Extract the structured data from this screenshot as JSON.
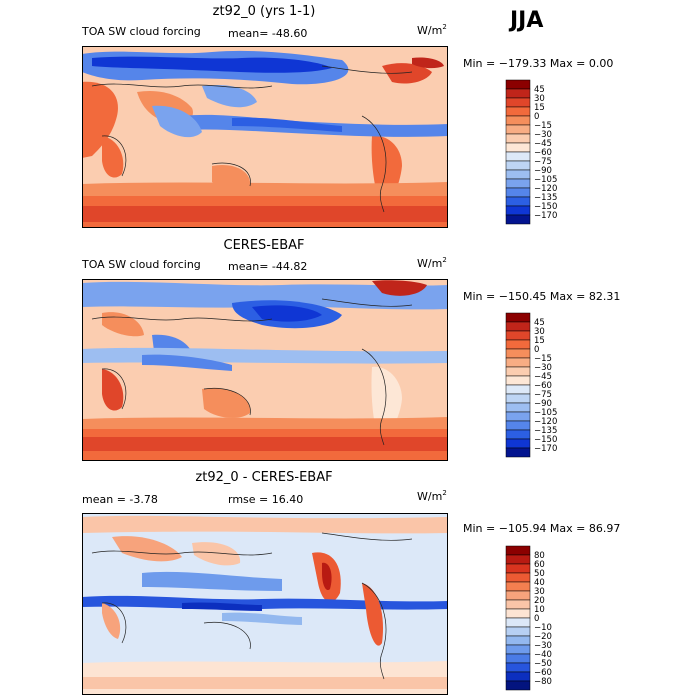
{
  "season": "JJA",
  "panels": [
    {
      "title": "zt92_0 (yrs 1-1)",
      "variable": "TOA SW cloud forcing",
      "stat_left": "",
      "stat_mid": "mean= -48.60",
      "units": "W/m",
      "units_sup": "2",
      "minmax": "Min = −179.33 Max =    0.00",
      "colorbar": {
        "levels": [
          "45",
          "30",
          "15",
          "0",
          "−15",
          "−30",
          "−45",
          "−60",
          "−75",
          "−90",
          "−105",
          "−120",
          "−135",
          "−150",
          "−170"
        ],
        "colors": [
          "#8b0000",
          "#c0251a",
          "#e0462a",
          "#f26a3c",
          "#f58e5c",
          "#f8ad84",
          "#fbcdb0",
          "#fde7d6",
          "#dde9f8",
          "#bed5f4",
          "#9dbef1",
          "#7aa3ee",
          "#5585ea",
          "#2c5fe3",
          "#0f36d4",
          "#03148f"
        ]
      }
    },
    {
      "title": "CERES-EBAF",
      "variable": "TOA SW cloud forcing",
      "stat_left": "",
      "stat_mid": "mean= -44.82",
      "units": "W/m",
      "units_sup": "2",
      "minmax": "Min = −150.45 Max =  82.31",
      "colorbar": {
        "levels": [
          "45",
          "30",
          "15",
          "0",
          "−15",
          "−30",
          "−45",
          "−60",
          "−75",
          "−90",
          "−105",
          "−120",
          "−135",
          "−150",
          "−170"
        ],
        "colors": [
          "#8b0000",
          "#c0251a",
          "#e0462a",
          "#f26a3c",
          "#f58e5c",
          "#f8ad84",
          "#fbcdb0",
          "#fde7d6",
          "#dde9f8",
          "#bed5f4",
          "#9dbef1",
          "#7aa3ee",
          "#5585ea",
          "#2c5fe3",
          "#0f36d4",
          "#03148f"
        ]
      }
    },
    {
      "title": "zt92_0 - CERES-EBAF",
      "variable": "",
      "stat_left": "mean =   -3.78",
      "stat_mid": "rmse =  16.40",
      "units": "W/m",
      "units_sup": "2",
      "minmax": "Min = −105.94 Max =  86.97",
      "colorbar": {
        "levels": [
          "80",
          "60",
          "50",
          "40",
          "30",
          "20",
          "10",
          "0",
          "−10",
          "−20",
          "−30",
          "−40",
          "−50",
          "−60",
          "−80"
        ],
        "colors": [
          "#8b0000",
          "#b81a12",
          "#d9341f",
          "#ec5a33",
          "#f47f50",
          "#f7a37c",
          "#fac5a8",
          "#fde4d3",
          "#dce8f8",
          "#b7d0f3",
          "#93b8ef",
          "#6e9bec",
          "#4a7be6",
          "#2755dd",
          "#0c2fbf",
          "#03147f"
        ]
      }
    }
  ],
  "chart_data": [
    {
      "type": "heatmap",
      "title": "zt92_0 (yrs 1-1)",
      "subtitle": "TOA SW cloud forcing",
      "units": "W/m2",
      "mean": -48.6,
      "min": -179.33,
      "max": 0.0,
      "season": "JJA",
      "contour_levels": [
        45,
        30,
        15,
        0,
        -15,
        -30,
        -45,
        -60,
        -75,
        -90,
        -105,
        -120,
        -135,
        -150,
        -170
      ]
    },
    {
      "type": "heatmap",
      "title": "CERES-EBAF",
      "subtitle": "TOA SW cloud forcing",
      "units": "W/m2",
      "mean": -44.82,
      "min": -150.45,
      "max": 82.31,
      "season": "JJA",
      "contour_levels": [
        45,
        30,
        15,
        0,
        -15,
        -30,
        -45,
        -60,
        -75,
        -90,
        -105,
        -120,
        -135,
        -150,
        -170
      ]
    },
    {
      "type": "heatmap",
      "title": "zt92_0 - CERES-EBAF",
      "units": "W/m2",
      "mean": -3.78,
      "rmse": 16.4,
      "min": -105.94,
      "max": 86.97,
      "season": "JJA",
      "contour_levels": [
        80,
        60,
        50,
        40,
        30,
        20,
        10,
        0,
        -10,
        -20,
        -30,
        -40,
        -50,
        -60,
        -80
      ]
    }
  ]
}
